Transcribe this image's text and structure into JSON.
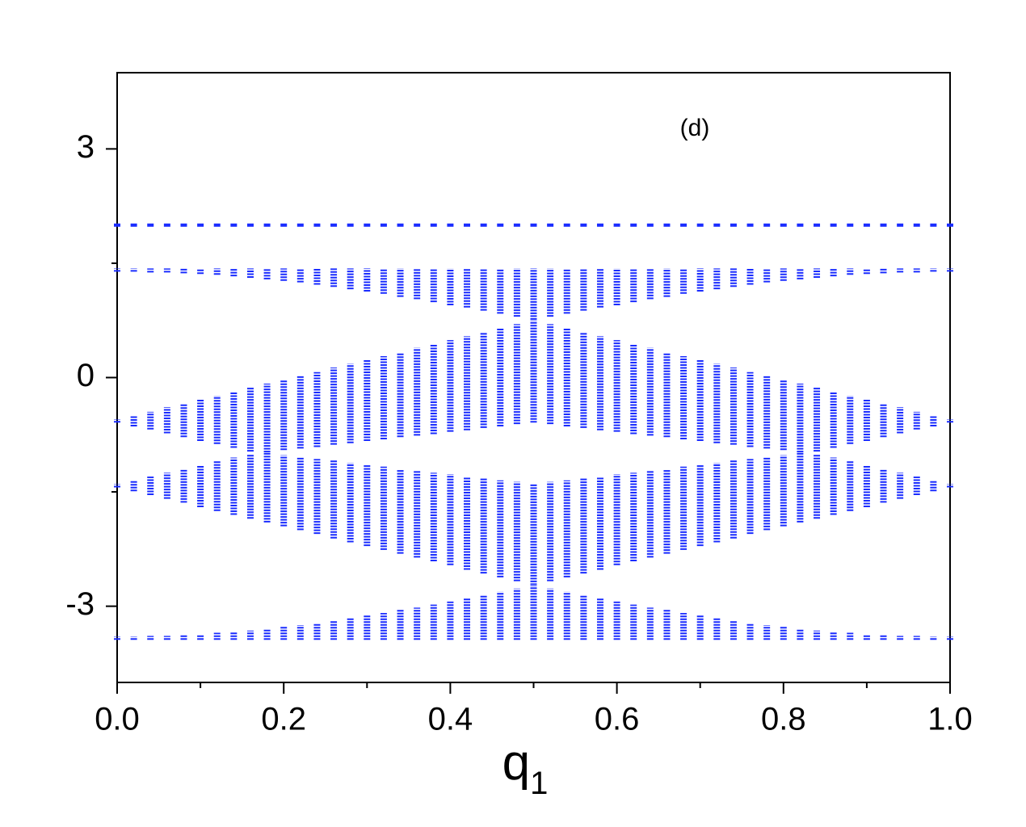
{
  "chart_data": {
    "type": "band",
    "annotation": "(d)",
    "xlabel": {
      "base": "q",
      "sub": "1"
    },
    "color": "#1a2cff",
    "xlim": [
      0,
      1
    ],
    "ylim": [
      -4,
      4
    ],
    "xticks": [
      {
        "value": 0,
        "label": "0.0"
      },
      {
        "value": 0.2,
        "label": "0.2"
      },
      {
        "value": 0.4,
        "label": "0.4"
      },
      {
        "value": 0.6,
        "label": "0.6"
      },
      {
        "value": 0.8,
        "label": "0.8"
      },
      {
        "value": 1,
        "label": "1.0"
      }
    ],
    "xminorticks": [
      0.1,
      0.3,
      0.5,
      0.7,
      0.9
    ],
    "yticks": [
      -3,
      0,
      3
    ],
    "yminorticks": [
      -1.5,
      1.5
    ],
    "x": [
      0,
      0.02,
      0.04,
      0.06,
      0.08,
      0.1,
      0.12,
      0.14,
      0.16,
      0.18,
      0.2,
      0.22,
      0.24,
      0.26,
      0.28,
      0.3,
      0.32,
      0.34,
      0.36,
      0.38,
      0.4,
      0.42,
      0.44,
      0.46,
      0.48,
      0.5,
      0.52,
      0.54,
      0.56,
      0.58,
      0.6,
      0.62,
      0.64,
      0.66,
      0.68,
      0.7,
      0.72,
      0.74,
      0.76,
      0.78,
      0.8,
      0.82,
      0.84,
      0.86,
      0.88,
      0.9,
      0.92,
      0.94,
      0.96,
      0.98,
      1
    ],
    "flat": [
      2,
      2,
      2,
      2,
      2,
      2,
      2,
      2,
      2,
      2,
      2,
      2,
      2,
      2,
      2,
      2,
      2,
      2,
      2,
      2,
      2,
      2,
      2,
      2,
      2,
      2,
      2,
      2,
      2,
      2,
      2,
      2,
      2,
      2,
      2,
      2,
      2,
      2,
      2,
      2,
      2,
      2,
      2,
      2,
      2,
      2,
      2,
      2,
      2,
      2,
      2
    ],
    "bands": [
      {
        "low": [
          1.41,
          1.41,
          1.4,
          1.4,
          1.39,
          1.38,
          1.37,
          1.35,
          1.33,
          1.31,
          1.29,
          1.27,
          1.24,
          1.21,
          1.18,
          1.15,
          1.12,
          1.08,
          1.05,
          1.01,
          0.97,
          0.94,
          0.9,
          0.86,
          0.82,
          0.78,
          0.82,
          0.86,
          0.9,
          0.94,
          0.97,
          1.01,
          1.05,
          1.08,
          1.12,
          1.15,
          1.18,
          1.21,
          1.24,
          1.27,
          1.29,
          1.31,
          1.33,
          1.35,
          1.37,
          1.38,
          1.39,
          1.4,
          1.4,
          1.41,
          1.41
        ],
        "high": [
          1.41,
          1.41,
          1.41,
          1.41,
          1.41,
          1.41,
          1.41,
          1.41,
          1.41,
          1.41,
          1.41,
          1.41,
          1.41,
          1.41,
          1.41,
          1.41,
          1.41,
          1.41,
          1.41,
          1.41,
          1.41,
          1.41,
          1.41,
          1.41,
          1.41,
          1.41,
          1.41,
          1.41,
          1.41,
          1.41,
          1.41,
          1.41,
          1.41,
          1.41,
          1.41,
          1.41,
          1.41,
          1.41,
          1.41,
          1.41,
          1.41,
          1.41,
          1.41,
          1.41,
          1.41,
          1.41,
          1.41,
          1.41,
          1.41,
          1.41,
          1.41
        ]
      },
      {
        "low": [
          -0.57,
          -0.62,
          -0.66,
          -0.71,
          -0.76,
          -0.81,
          -0.85,
          -0.9,
          -0.95,
          -0.96,
          -0.93,
          -0.91,
          -0.89,
          -0.86,
          -0.84,
          -0.81,
          -0.79,
          -0.76,
          -0.74,
          -0.72,
          -0.69,
          -0.67,
          -0.64,
          -0.62,
          -0.59,
          -0.57,
          -0.59,
          -0.62,
          -0.64,
          -0.67,
          -0.69,
          -0.72,
          -0.74,
          -0.76,
          -0.79,
          -0.81,
          -0.84,
          -0.86,
          -0.89,
          -0.91,
          -0.93,
          -0.96,
          -0.95,
          -0.9,
          -0.85,
          -0.81,
          -0.76,
          -0.71,
          -0.66,
          -0.62,
          -0.57
        ],
        "high": [
          -0.57,
          -0.52,
          -0.47,
          -0.41,
          -0.36,
          -0.31,
          -0.26,
          -0.21,
          -0.15,
          -0.1,
          -0.05,
          0,
          0.05,
          0.11,
          0.16,
          0.21,
          0.26,
          0.31,
          0.37,
          0.42,
          0.47,
          0.52,
          0.57,
          0.63,
          0.68,
          0.73,
          0.68,
          0.63,
          0.57,
          0.52,
          0.47,
          0.42,
          0.37,
          0.31,
          0.26,
          0.21,
          0.16,
          0.11,
          0.05,
          0,
          -0.05,
          -0.1,
          -0.15,
          -0.21,
          -0.26,
          -0.31,
          -0.36,
          -0.41,
          -0.47,
          -0.52,
          -0.57
        ]
      },
      {
        "low": [
          -1.42,
          -1.47,
          -1.52,
          -1.57,
          -1.62,
          -1.68,
          -1.73,
          -1.78,
          -1.83,
          -1.88,
          -1.93,
          -1.98,
          -2.03,
          -2.09,
          -2.14,
          -2.19,
          -2.24,
          -2.29,
          -2.34,
          -2.39,
          -2.44,
          -2.5,
          -2.55,
          -2.6,
          -2.65,
          -2.7,
          -2.65,
          -2.6,
          -2.55,
          -2.5,
          -2.44,
          -2.39,
          -2.34,
          -2.29,
          -2.24,
          -2.19,
          -2.14,
          -2.09,
          -2.03,
          -1.98,
          -1.93,
          -1.88,
          -1.83,
          -1.78,
          -1.73,
          -1.68,
          -1.62,
          -1.57,
          -1.52,
          -1.47,
          -1.42
        ],
        "high": [
          -1.42,
          -1.37,
          -1.32,
          -1.27,
          -1.22,
          -1.17,
          -1.12,
          -1.07,
          -1.02,
          -1.01,
          -1.04,
          -1.06,
          -1.09,
          -1.11,
          -1.14,
          -1.17,
          -1.19,
          -1.22,
          -1.24,
          -1.27,
          -1.29,
          -1.32,
          -1.34,
          -1.37,
          -1.39,
          -1.42,
          -1.39,
          -1.37,
          -1.34,
          -1.32,
          -1.29,
          -1.27,
          -1.24,
          -1.22,
          -1.19,
          -1.17,
          -1.14,
          -1.11,
          -1.09,
          -1.06,
          -1.04,
          -1.01,
          -1.02,
          -1.07,
          -1.12,
          -1.17,
          -1.22,
          -1.27,
          -1.32,
          -1.37,
          -1.42
        ]
      },
      {
        "low": [
          -3.42,
          -3.42,
          -3.42,
          -3.42,
          -3.42,
          -3.42,
          -3.42,
          -3.42,
          -3.42,
          -3.42,
          -3.42,
          -3.42,
          -3.42,
          -3.42,
          -3.42,
          -3.42,
          -3.42,
          -3.42,
          -3.42,
          -3.42,
          -3.42,
          -3.42,
          -3.42,
          -3.42,
          -3.42,
          -3.42,
          -3.42,
          -3.42,
          -3.42,
          -3.42,
          -3.42,
          -3.42,
          -3.42,
          -3.42,
          -3.42,
          -3.42,
          -3.42,
          -3.42,
          -3.42,
          -3.42,
          -3.42,
          -3.42,
          -3.42,
          -3.42,
          -3.42,
          -3.42,
          -3.42,
          -3.42,
          -3.42,
          -3.42,
          -3.42
        ],
        "high": [
          -3.42,
          -3.42,
          -3.41,
          -3.41,
          -3.4,
          -3.39,
          -3.37,
          -3.36,
          -3.34,
          -3.32,
          -3.29,
          -3.27,
          -3.24,
          -3.21,
          -3.18,
          -3.14,
          -3.11,
          -3.07,
          -3.04,
          -3,
          -2.96,
          -2.92,
          -2.88,
          -2.83,
          -2.79,
          -2.75,
          -2.79,
          -2.83,
          -2.88,
          -2.92,
          -2.96,
          -3,
          -3.04,
          -3.07,
          -3.11,
          -3.14,
          -3.18,
          -3.21,
          -3.24,
          -3.27,
          -3.29,
          -3.32,
          -3.34,
          -3.36,
          -3.37,
          -3.39,
          -3.4,
          -3.41,
          -3.41,
          -3.42,
          -3.42
        ]
      }
    ]
  }
}
